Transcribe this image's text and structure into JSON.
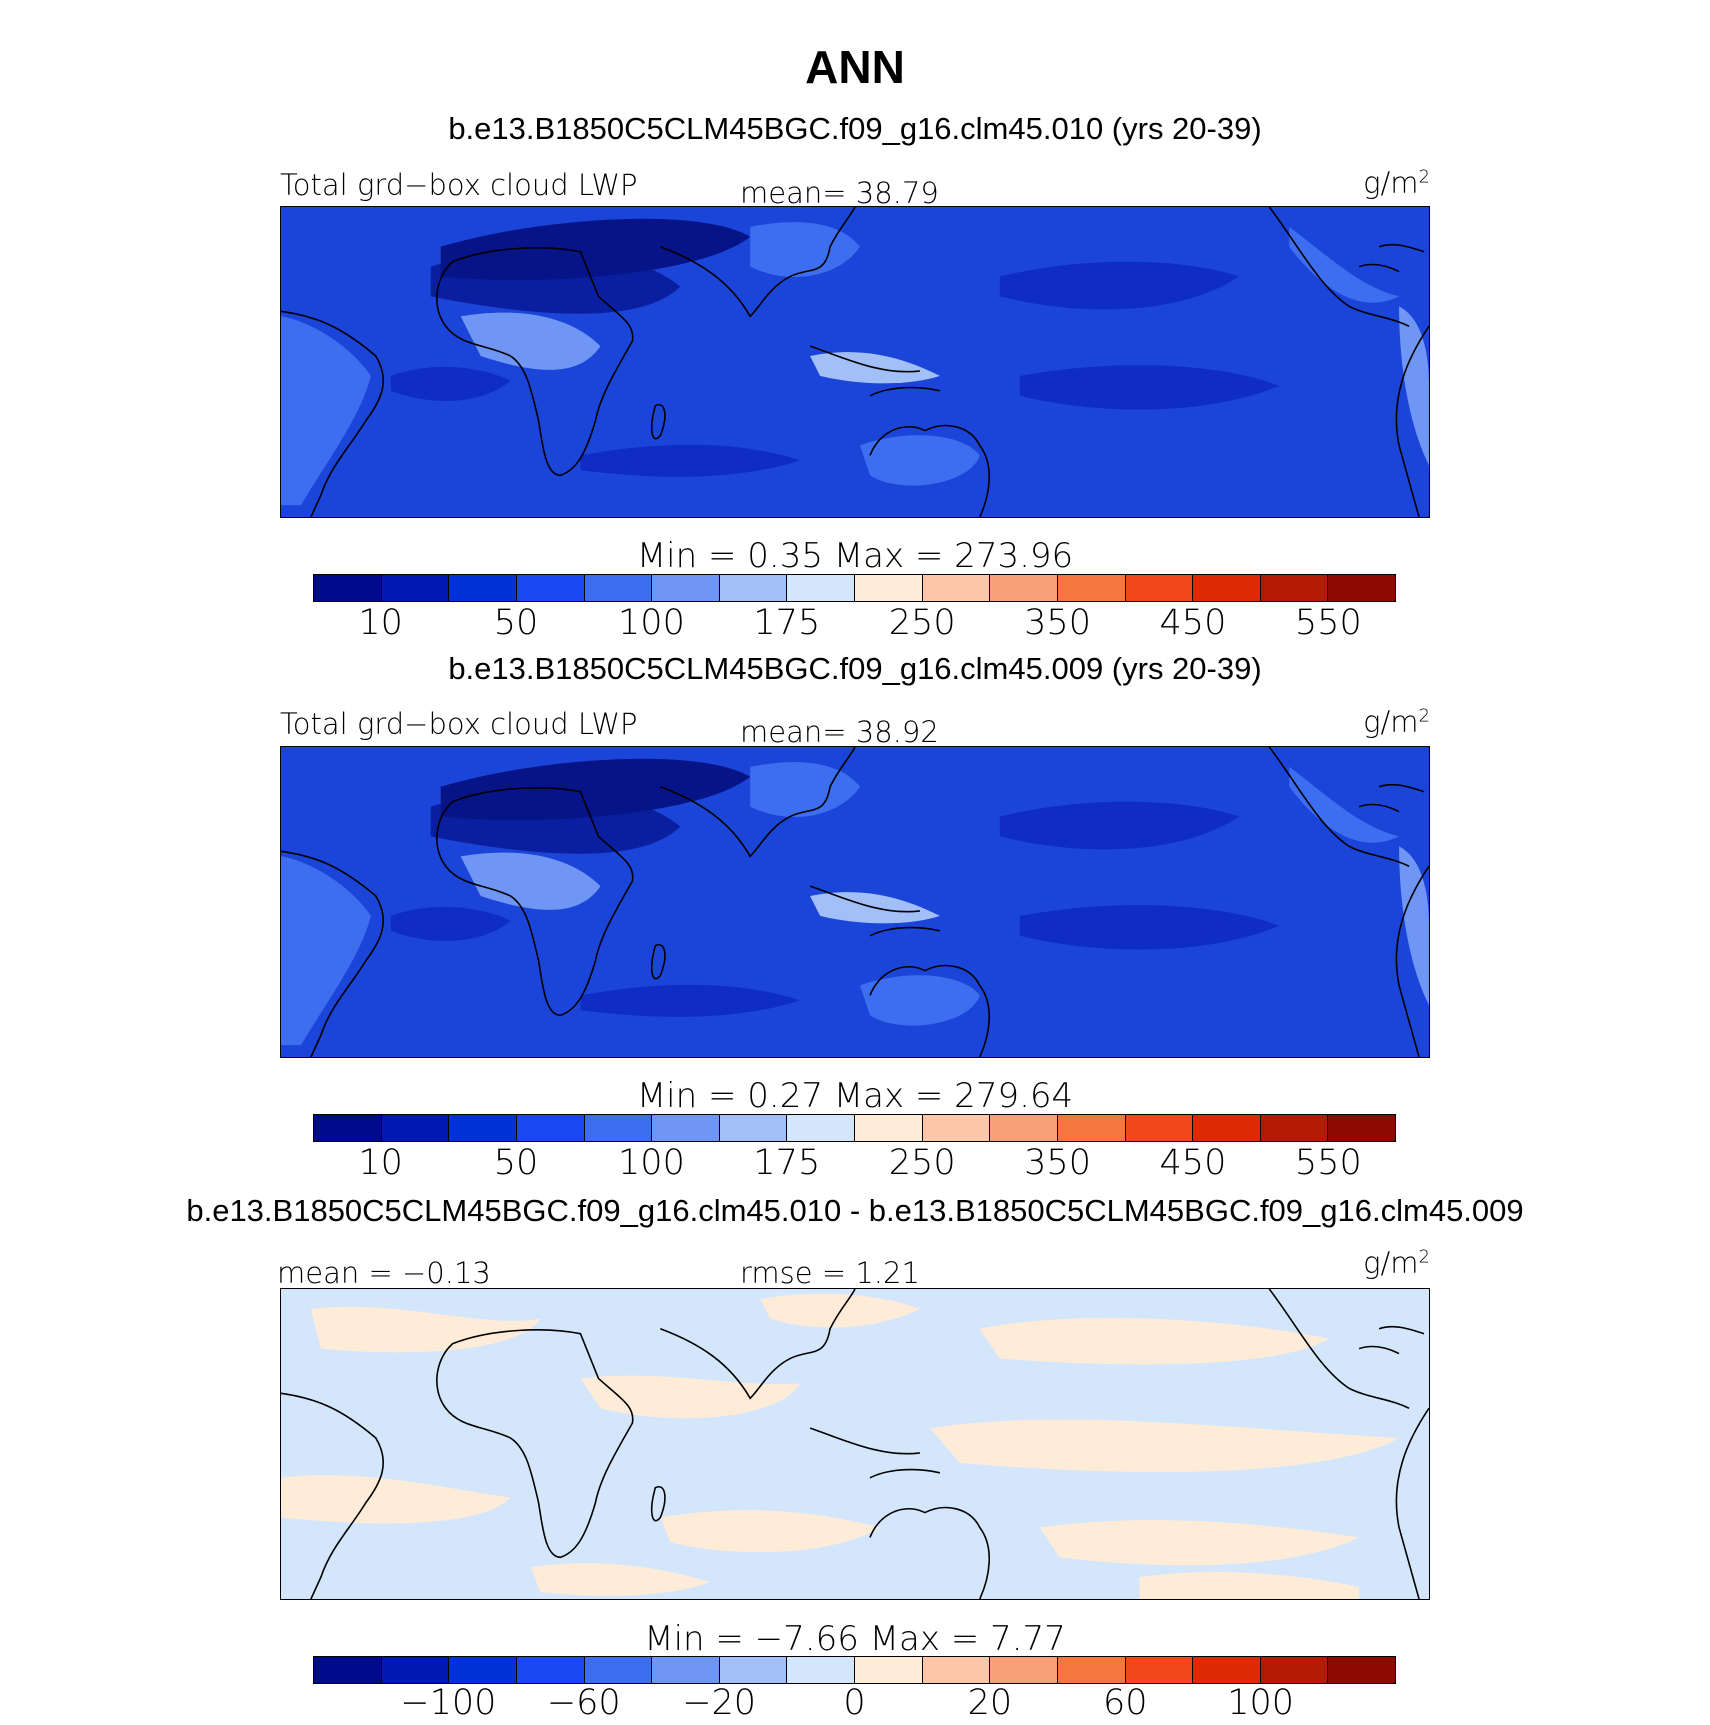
{
  "page_title": "ANN",
  "panels": [
    {
      "case_title": "b.e13.B1850C5CLM45BGC.f09_g16.clm45.010 (yrs 20-39)",
      "left_label": "Total grd−box cloud LWP",
      "center_label": "mean=  38.79",
      "units": "g/m",
      "units_sup": "2",
      "stats": "Min =    0.35  Max  = 273.96",
      "field": "absolute",
      "colorbar_colors": [
        "#000a8c",
        "#0019b2",
        "#0032d6",
        "#1947f0",
        "#3d6ef0",
        "#6f96f5",
        "#a3bff8",
        "#d3e6fb",
        "#feecd9",
        "#fbc7a8",
        "#f8a178",
        "#f5763f",
        "#f2471c",
        "#dc2a05",
        "#b51a05",
        "#8c0a00"
      ],
      "colorbar_ticks": [
        "10",
        "50",
        "100",
        "175",
        "250",
        "350",
        "450",
        "550"
      ]
    },
    {
      "case_title": "b.e13.B1850C5CLM45BGC.f09_g16.clm45.009 (yrs 20-39)",
      "left_label": "Total grd−box cloud LWP",
      "center_label": "mean=  38.92",
      "units": "g/m",
      "units_sup": "2",
      "stats": "Min =    0.27  Max  = 279.64",
      "field": "absolute",
      "colorbar_colors": [
        "#000a8c",
        "#0019b2",
        "#0032d6",
        "#1947f0",
        "#3d6ef0",
        "#6f96f5",
        "#a3bff8",
        "#d3e6fb",
        "#feecd9",
        "#fbc7a8",
        "#f8a178",
        "#f5763f",
        "#f2471c",
        "#dc2a05",
        "#b51a05",
        "#8c0a00"
      ],
      "colorbar_ticks": [
        "10",
        "50",
        "100",
        "175",
        "250",
        "350",
        "450",
        "550"
      ]
    },
    {
      "case_title": "b.e13.B1850C5CLM45BGC.f09_g16.clm45.010 - b.e13.B1850C5CLM45BGC.f09_g16.clm45.009",
      "left_label": "mean =   −0.13",
      "center_label": "rmse =     1.21",
      "units": "g/m",
      "units_sup": "2",
      "stats": "Min =   −7.66  Max  =     7.77",
      "field": "difference",
      "colorbar_colors": [
        "#000a8c",
        "#0019b2",
        "#0032d6",
        "#1947f0",
        "#3d6ef0",
        "#6f96f5",
        "#a3bff8",
        "#d3e6fb",
        "#feecd9",
        "#fbc7a8",
        "#f8a178",
        "#f5763f",
        "#f2471c",
        "#dc2a05",
        "#b51a05",
        "#8c0a00"
      ],
      "colorbar_ticks": [
        "−100",
        "−60",
        "−20",
        "0",
        "20",
        "60",
        "100"
      ]
    }
  ]
}
